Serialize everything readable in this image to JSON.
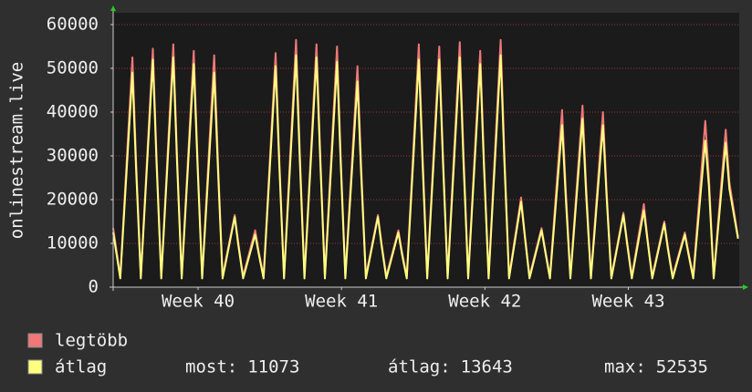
{
  "chart_data": {
    "type": "line",
    "y_label": "onlinestream.live",
    "xlim": [
      0,
      30.6
    ],
    "xticks": [
      {
        "value": 4.15,
        "label": "Week 40"
      },
      {
        "value": 11.16,
        "label": "Week 41"
      },
      {
        "value": 18.17,
        "label": "Week 42"
      },
      {
        "value": 25.18,
        "label": "Week 43"
      }
    ],
    "ylim": [
      0,
      62700
    ],
    "yticks": [
      0,
      10000,
      20000,
      30000,
      40000,
      50000,
      60000
    ],
    "grid": true,
    "x": [
      0,
      0.35,
      0.94,
      1.12,
      1.35,
      1.94,
      2.12,
      2.35,
      2.94,
      3.12,
      3.35,
      3.94,
      4.12,
      4.35,
      4.94,
      5.12,
      5.35,
      5.94,
      6.12,
      6.35,
      6.94,
      7.12,
      7.35,
      7.94,
      8.12,
      8.35,
      8.94,
      9.12,
      9.35,
      9.94,
      10.12,
      10.35,
      10.94,
      11.12,
      11.35,
      11.94,
      12.12,
      12.35,
      12.94,
      13.12,
      13.35,
      13.94,
      14.12,
      14.35,
      14.94,
      15.12,
      15.35,
      15.94,
      16.12,
      16.35,
      16.94,
      17.12,
      17.35,
      17.94,
      18.12,
      18.35,
      18.94,
      19.12,
      19.35,
      19.94,
      20.12,
      20.35,
      20.94,
      21.12,
      21.35,
      21.94,
      22.12,
      22.35,
      22.94,
      23.12,
      23.35,
      23.94,
      24.12,
      24.35,
      24.94,
      25.12,
      25.35,
      25.94,
      26.12,
      26.35,
      26.94,
      27.12,
      27.35,
      27.94,
      28.12,
      28.35,
      28.94,
      29.12,
      29.35,
      29.94,
      30.12,
      30.54
    ],
    "series": [
      {
        "name": "legtöbb",
        "color": "#f07878",
        "values": [
          13500,
          2500,
          52500,
          29000,
          2500,
          54500,
          30000,
          2500,
          55500,
          30500,
          2500,
          54000,
          29500,
          2500,
          53000,
          29000,
          2500,
          16500,
          10000,
          2500,
          13000,
          8000,
          2500,
          53500,
          29500,
          2500,
          56500,
          31000,
          2500,
          55500,
          30500,
          2500,
          55000,
          30000,
          2500,
          50500,
          28000,
          2500,
          16500,
          10000,
          2500,
          13000,
          8000,
          2500,
          55500,
          30500,
          2500,
          55000,
          30000,
          2500,
          56000,
          31000,
          2500,
          54000,
          29500,
          2500,
          56500,
          31000,
          2500,
          20500,
          12000,
          2500,
          13500,
          8500,
          2500,
          40500,
          22500,
          2500,
          41500,
          23000,
          2500,
          40000,
          22000,
          2500,
          17000,
          10500,
          2500,
          19000,
          11000,
          2500,
          15000,
          9000,
          2500,
          12500,
          8000,
          2500,
          38000,
          25000,
          2500,
          36000,
          24000,
          11500
        ]
      },
      {
        "name": "átlag",
        "color": "#ffff80",
        "values": [
          12500,
          2000,
          49000,
          27000,
          2000,
          52000,
          28500,
          2000,
          52500,
          29000,
          2000,
          51000,
          28000,
          2000,
          49000,
          27000,
          2000,
          16000,
          9500,
          2000,
          12000,
          7500,
          2000,
          50500,
          28000,
          2000,
          53000,
          29000,
          2000,
          52500,
          29000,
          2000,
          51500,
          28500,
          2000,
          47000,
          26000,
          2000,
          16000,
          9500,
          2000,
          12500,
          7500,
          2000,
          52000,
          28500,
          2000,
          52000,
          28500,
          2000,
          52500,
          29000,
          2000,
          51000,
          28000,
          2000,
          53000,
          29000,
          2000,
          19500,
          11500,
          2000,
          13000,
          8000,
          2000,
          37000,
          20500,
          2000,
          38500,
          21000,
          2000,
          37000,
          20500,
          2000,
          16500,
          10000,
          2000,
          17500,
          10500,
          2000,
          14500,
          8500,
          2000,
          12000,
          7500,
          2000,
          33500,
          23000,
          2000,
          33000,
          22500,
          11073
        ]
      }
    ],
    "stats": [
      {
        "label": "most:",
        "value": 11073
      },
      {
        "label": "átlag:",
        "value": 13643
      },
      {
        "label": "max:",
        "value": 52535
      }
    ]
  }
}
